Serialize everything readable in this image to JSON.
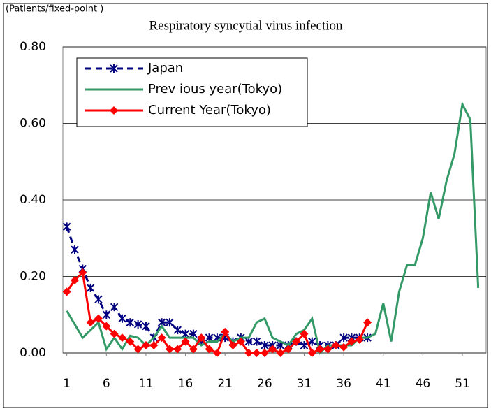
{
  "chart_data": {
    "type": "line",
    "title": "Respiratory syncytial virus infection",
    "y_label": "(Patients/fixed-point )",
    "x": [
      1,
      2,
      3,
      4,
      5,
      6,
      7,
      8,
      9,
      10,
      11,
      12,
      13,
      14,
      15,
      16,
      17,
      18,
      19,
      20,
      21,
      22,
      23,
      24,
      25,
      26,
      27,
      28,
      29,
      30,
      31,
      32,
      33,
      34,
      35,
      36,
      37,
      38,
      39,
      40,
      41,
      42,
      43,
      44,
      45,
      46,
      47,
      48,
      49,
      50,
      51,
      52,
      53
    ],
    "xlim": [
      0.5,
      54
    ],
    "xticks": [
      1,
      6,
      11,
      16,
      21,
      26,
      31,
      36,
      41,
      46,
      51
    ],
    "ylim": [
      0,
      0.8
    ],
    "yticks": [
      {
        "value": 0,
        "label": "0.00"
      },
      {
        "value": 0.2,
        "label": "0.20"
      },
      {
        "value": 0.4,
        "label": "0.40"
      },
      {
        "value": 0.6,
        "label": "0.60"
      },
      {
        "value": 0.8,
        "label": "0.80"
      }
    ],
    "grid": true,
    "legend": "top-left",
    "series": [
      {
        "name": "Japan",
        "color": "#000080",
        "style": "dashed",
        "marker": "x",
        "values": [
          0.33,
          0.27,
          0.22,
          0.17,
          0.14,
          0.1,
          0.12,
          0.09,
          0.08,
          0.075,
          0.07,
          0.04,
          0.08,
          0.08,
          0.06,
          0.05,
          0.05,
          0.03,
          0.04,
          0.04,
          0.04,
          0.03,
          0.04,
          0.03,
          0.03,
          0.02,
          0.02,
          0.02,
          0.02,
          0.03,
          0.02,
          0.03,
          0.02,
          0.02,
          0.02,
          0.04,
          0.04,
          0.04,
          0.04,
          null,
          null,
          null,
          null,
          null,
          null,
          null,
          null,
          null,
          null,
          null,
          null,
          null,
          null
        ]
      },
      {
        "name": "Prev ious year(Tokyo)",
        "color": "#339966",
        "style": "solid",
        "marker": "none",
        "values": [
          0.11,
          0.075,
          0.04,
          0.06,
          0.08,
          0.01,
          0.04,
          0.01,
          0.045,
          0.04,
          0.02,
          0.04,
          0.07,
          0.04,
          0.04,
          0.04,
          0.04,
          0.02,
          0.03,
          0.03,
          0.05,
          0.03,
          0.04,
          0.04,
          0.08,
          0.09,
          0.04,
          0.03,
          0.02,
          0.05,
          0.06,
          0.09,
          0.0,
          0.02,
          0.02,
          0.02,
          0.02,
          0.04,
          0.04,
          0.05,
          0.13,
          0.03,
          0.16,
          0.23,
          0.23,
          0.3,
          0.42,
          0.35,
          0.45,
          0.52,
          0.65,
          0.61,
          0.17
        ]
      },
      {
        "name": "Current Year(Tokyo)",
        "color": "#ff0000",
        "style": "solid",
        "marker": "diamond",
        "values": [
          0.16,
          0.19,
          0.21,
          0.08,
          0.09,
          0.07,
          0.05,
          0.04,
          0.03,
          0.01,
          0.02,
          0.02,
          0.04,
          0.01,
          0.01,
          0.03,
          0.01,
          0.04,
          0.01,
          0.0,
          0.055,
          0.02,
          0.03,
          0.0,
          0.0,
          0.0,
          0.01,
          0.0,
          0.01,
          0.03,
          0.05,
          0.0,
          0.01,
          0.01,
          0.02,
          0.015,
          0.03,
          0.035,
          0.08,
          null,
          null,
          null,
          null,
          null,
          null,
          null,
          null,
          null,
          null,
          null,
          null,
          null,
          null
        ]
      }
    ]
  }
}
